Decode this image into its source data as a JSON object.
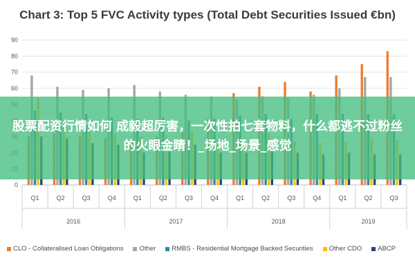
{
  "chart_data": {
    "type": "bar",
    "title": "Chart 3: Top 5 FVC Activity types (Total Debt Securities Issued €bn)",
    "ylim": [
      0,
      90
    ],
    "yticks": [
      0,
      10,
      20,
      30,
      40,
      50,
      60,
      70,
      80,
      90
    ],
    "categories": [
      "Q1",
      "Q2",
      "Q3",
      "Q4",
      "Q1",
      "Q2",
      "Q3",
      "Q4",
      "Q1",
      "Q2",
      "Q3",
      "Q4",
      "Q1",
      "Q2",
      "Q3"
    ],
    "years": [
      {
        "label": "2016",
        "start": 0,
        "count": 4
      },
      {
        "label": "2017",
        "start": 4,
        "count": 4
      },
      {
        "label": "2018",
        "start": 8,
        "count": 4
      },
      {
        "label": "2019",
        "start": 12,
        "count": 3
      }
    ],
    "series": [
      {
        "name": "CLO - Collateralised Loan Obligations",
        "color": "#ed7d31",
        "values": [
          30,
          32,
          30,
          29,
          28,
          30,
          33,
          41,
          57,
          61,
          64,
          58,
          68,
          75,
          83
        ]
      },
      {
        "name": "Other",
        "color": "#a5a5a5",
        "values": [
          68,
          61,
          59,
          60,
          62,
          58,
          56,
          55,
          53,
          55,
          54,
          56,
          60,
          67,
          67
        ]
      },
      {
        "name": "RMBS - Residential Mortgage Backed Securities",
        "color": "#2e8b99",
        "values": [
          46,
          45,
          44,
          42,
          41,
          42,
          40,
          41,
          43,
          44,
          41,
          44,
          44,
          44,
          44
        ]
      },
      {
        "name": "Other CDO",
        "color": "#ffc000",
        "values": [
          54,
          36,
          33,
          32,
          30,
          30,
          33,
          28,
          26,
          32,
          27,
          26,
          27,
          29,
          28
        ]
      },
      {
        "name": "ABCP",
        "color": "#264478",
        "values": [
          30,
          29,
          26,
          25,
          20,
          21,
          25,
          20,
          20,
          21,
          20,
          19,
          20,
          19,
          19
        ]
      }
    ],
    "legend_position": "bottom",
    "grid": true
  },
  "overlay": {
    "text": "股票配资行情如何 成毅超厉害，一次性拍七套物料，什么都逃不过粉丝的火眼金睛！_场地_场景_感觉"
  }
}
